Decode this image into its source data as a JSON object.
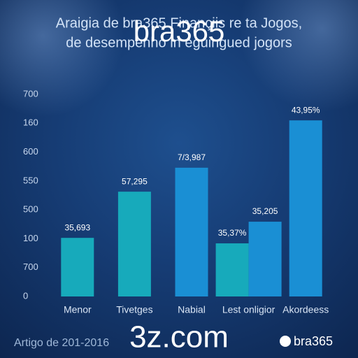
{
  "chart_data": {
    "type": "bar",
    "title": "Araigia de bra365 Finançiis re ta Jogos,",
    "subtitle": "de desempenho in eguingued jogors",
    "categories": [
      "Menor",
      "Tivetges",
      "Nabial",
      "Lest onligior",
      "Akordeess"
    ],
    "series": [
      {
        "color": "#17aabb",
        "values": [
          203,
          363,
          null,
          184,
          null
        ]
      },
      {
        "color": "#1a8fd4",
        "values": [
          null,
          null,
          446,
          259,
          610
        ]
      }
    ],
    "annotations": [
      "35,693",
      "57,295",
      "7/3,987",
      "35,37%",
      "35,205",
      "43,95%"
    ],
    "ylim": [
      0,
      700
    ],
    "yticks": [
      0,
      {
        "value": 100,
        "label": "700"
      },
      {
        "value": 200,
        "label": "100"
      },
      {
        "value": 300,
        "label": "500"
      },
      {
        "value": 400,
        "label": "550"
      },
      {
        "value": 500,
        "label": "600"
      },
      {
        "value": 600,
        "label": "160"
      },
      700
    ],
    "grid": false
  },
  "watermarks": {
    "top": "bra365",
    "bottom": "3z.com"
  },
  "footer": {
    "left": "Artigo de 201-2016",
    "right": "bra365"
  }
}
